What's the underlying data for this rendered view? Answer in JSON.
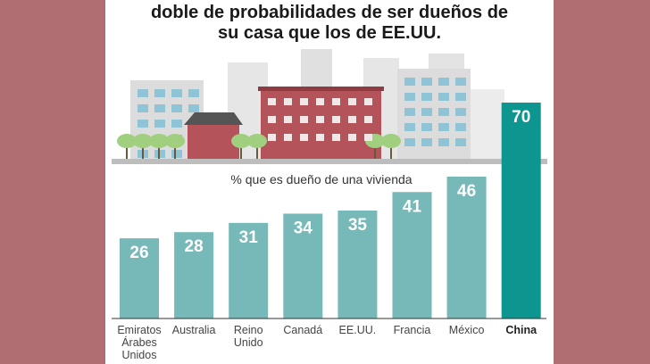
{
  "chart_data": {
    "type": "bar",
    "title_lines": [
      "doble de probabilidades de ser dueños de",
      "su casa que los de EE.UU."
    ],
    "subtitle": "% que es dueño de una vivienda",
    "categories": [
      [
        "Emiratos",
        "Árabes",
        "Unidos"
      ],
      [
        "Australia"
      ],
      [
        "Reino",
        "Unido"
      ],
      [
        "Canadá"
      ],
      [
        "EE.UU."
      ],
      [
        "Francia"
      ],
      [
        "México"
      ],
      [
        "China"
      ]
    ],
    "values": [
      26,
      28,
      31,
      34,
      35,
      41,
      46,
      70
    ],
    "highlight": "China",
    "colors": {
      "bar": "#77b9b8",
      "highlight": "#0d968f",
      "background": "#b06d72"
    },
    "ylim": [
      0,
      70
    ]
  }
}
